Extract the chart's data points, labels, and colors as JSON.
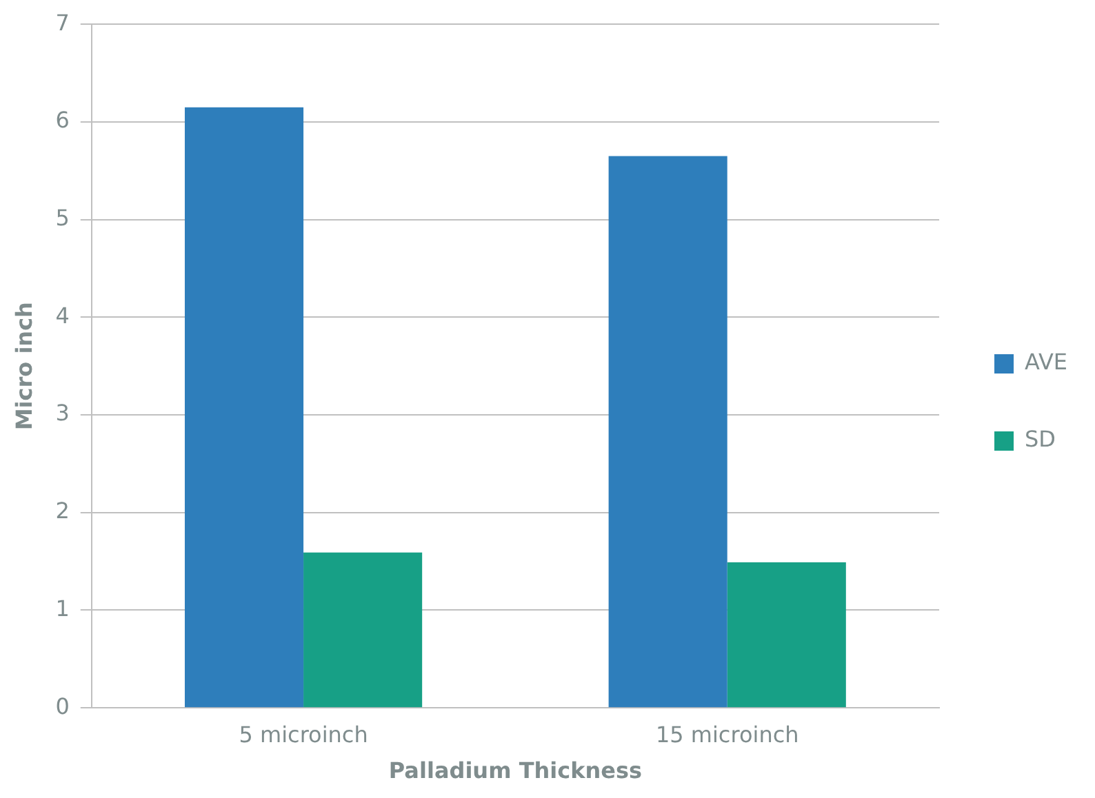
{
  "chart_data": {
    "type": "bar",
    "xlabel": "Palladium Thickness",
    "ylabel": "Micro inch",
    "categories": [
      "5 microinch",
      "15 microinch"
    ],
    "series": [
      {
        "name": "AVE",
        "color": "#2e7ebb",
        "values": [
          6.15,
          5.65
        ]
      },
      {
        "name": "SD",
        "color": "#17a086",
        "values": [
          1.59,
          1.49
        ]
      }
    ],
    "ylim": [
      0,
      7
    ],
    "yticks": [
      0,
      1,
      2,
      3,
      4,
      5,
      6,
      7
    ],
    "grid": "y",
    "legend": "right"
  }
}
